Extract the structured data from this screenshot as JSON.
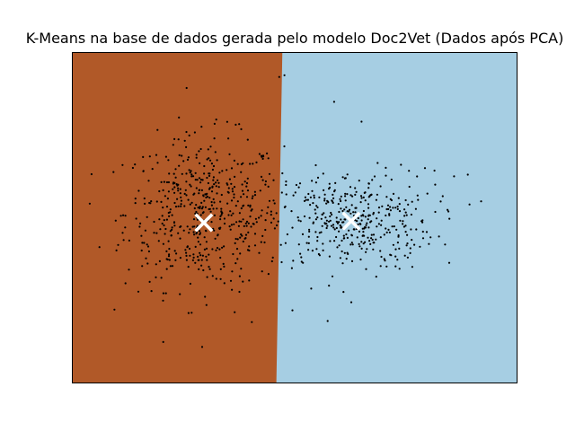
{
  "chart_data": {
    "type": "scatter",
    "title": "K-Means na base de dados gerada pelo modelo Doc2Vet (Dados após PCA)",
    "xlabel": "",
    "ylabel": "",
    "xlim": [
      -1.3,
      1.3
    ],
    "ylim": [
      -1.0,
      1.0
    ],
    "axis_ticks": false,
    "grid": false,
    "legend": "none",
    "regions": [
      {
        "cluster": 0,
        "color": "#b15928",
        "boundary_x": [
          -0.072,
          -0.107
        ],
        "side": "left"
      },
      {
        "cluster": 1,
        "color": "#a6cee3",
        "side": "right"
      }
    ],
    "centroids": {
      "marker": "x",
      "color": "#ffffff",
      "points": [
        {
          "cluster": 0,
          "x": -0.53,
          "y": -0.03
        },
        {
          "cluster": 1,
          "x": 0.33,
          "y": -0.02
        }
      ]
    },
    "points": {
      "color": "#000000",
      "marker": "dot",
      "clusters": [
        {
          "center": [
            -0.53,
            0.03
          ],
          "spread": [
            0.23,
            0.23
          ],
          "count": 520
        },
        {
          "center": [
            0.33,
            -0.02
          ],
          "spread": [
            0.24,
            0.15
          ],
          "count": 400
        }
      ],
      "notable": [
        [
          -0.81,
          -0.36
        ],
        [
          -0.09,
          0.85
        ],
        [
          -0.06,
          0.86
        ],
        [
          0.23,
          0.7
        ],
        [
          0.39,
          0.58
        ],
        [
          0.62,
          0.32
        ],
        [
          0.76,
          0.3
        ],
        [
          0.66,
          -0.24
        ],
        [
          0.82,
          0.2
        ],
        [
          0.93,
          0.25
        ],
        [
          1.01,
          0.26
        ],
        [
          1.02,
          0.08
        ],
        [
          0.33,
          -0.51
        ],
        [
          0.2,
          -0.41
        ],
        [
          -0.54,
          -0.78
        ],
        [
          -0.25,
          -0.63
        ],
        [
          -0.35,
          -0.57
        ],
        [
          -0.79,
          0.16
        ]
      ]
    }
  }
}
